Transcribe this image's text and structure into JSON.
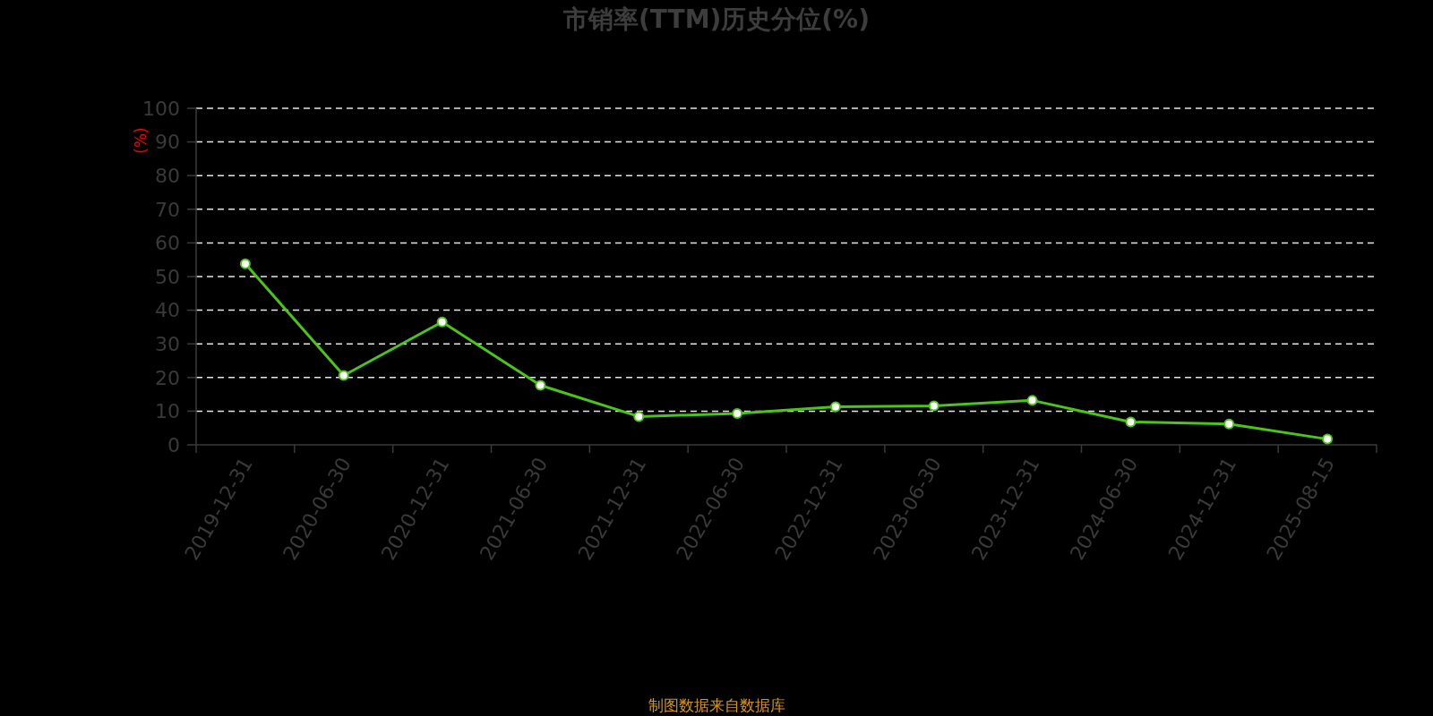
{
  "chart_data": {
    "type": "line",
    "title": "市销率(TTM)历史分位(%)",
    "ylabel": "(%)",
    "annotations": [
      "制图数据来自数据库"
    ],
    "categories": [
      "2019-12-31",
      "2020-06-30",
      "2020-12-31",
      "2021-06-30",
      "2021-12-31",
      "2022-06-30",
      "2022-12-31",
      "2023-06-30",
      "2023-12-31",
      "2024-06-30",
      "2024-12-31",
      "2025-08-15"
    ],
    "series": [
      {
        "color": "#4cc41a",
        "values": [
          53.8,
          20.6,
          36.5,
          17.7,
          8.4,
          9.3,
          11.3,
          11.6,
          13.2,
          6.8,
          6.2,
          1.7
        ]
      }
    ],
    "ylim": [
      0,
      100
    ],
    "yticks": [
      0,
      10,
      20,
      30,
      40,
      50,
      60,
      70,
      80,
      90,
      100
    ],
    "grid": "y",
    "marker": "circle",
    "line_style": "solid"
  }
}
